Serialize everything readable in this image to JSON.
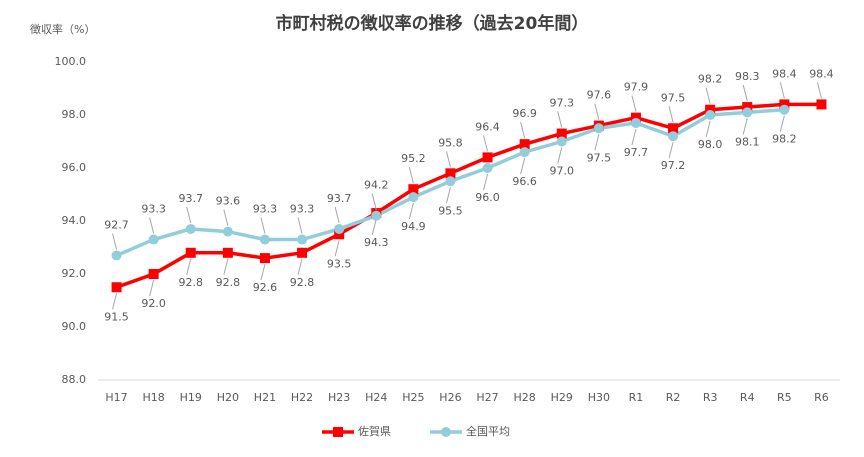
{
  "chart_data": {
    "type": "line",
    "title": "市町村税の徴収率の推移（過去20年間）",
    "y_label": "徴収率（%）",
    "categories": [
      "H17",
      "H18",
      "H19",
      "H20",
      "H21",
      "H22",
      "H23",
      "H24",
      "H25",
      "H26",
      "H27",
      "H28",
      "H29",
      "H30",
      "R1",
      "R2",
      "R3",
      "R4",
      "R5",
      "R6"
    ],
    "series": [
      {
        "name": "佐賀県",
        "color": "#ff0000",
        "marker": "square",
        "values": [
          91.5,
          92.0,
          92.8,
          92.8,
          92.6,
          92.8,
          93.5,
          94.3,
          95.2,
          95.8,
          96.4,
          96.9,
          97.3,
          97.6,
          97.9,
          97.5,
          98.2,
          98.3,
          98.4,
          98.4
        ],
        "value_labels": [
          "91.5",
          "92.0",
          "92.8",
          "92.8",
          "92.6",
          "92.8",
          "93.5",
          "94.3",
          "95.2",
          "95.8",
          "96.4",
          "96.9",
          "97.3",
          "97.6",
          "97.9",
          "97.5",
          "98.2",
          "98.3",
          "98.4",
          "98.4"
        ]
      },
      {
        "name": "全国平均",
        "color": "#92cddc",
        "marker": "circle",
        "values": [
          92.7,
          93.3,
          93.7,
          93.6,
          93.3,
          93.3,
          93.7,
          94.2,
          94.9,
          95.5,
          96.0,
          96.6,
          97.0,
          97.5,
          97.7,
          97.2,
          98.0,
          98.1,
          98.2,
          null
        ],
        "value_labels": [
          "92.7",
          "93.3",
          "93.7",
          "93.6",
          "93.3",
          "93.3",
          "93.7",
          "94.2",
          "94.9",
          "95.5",
          "96.0",
          "96.6",
          "97.0",
          "97.5",
          "97.7",
          "97.2",
          "98.0",
          "98.1",
          "98.2",
          null
        ]
      }
    ],
    "ylim": [
      88,
      100
    ],
    "yticks": [
      {
        "value": 88,
        "label": "88.0"
      },
      {
        "value": 90,
        "label": "90.0"
      },
      {
        "value": 92,
        "label": "92.0"
      },
      {
        "value": 94,
        "label": "94.0"
      },
      {
        "value": 96,
        "label": "96.0"
      },
      {
        "value": 98,
        "label": "98.0"
      },
      {
        "value": 100,
        "label": "100.0"
      }
    ],
    "grid": false,
    "legend": "bottom"
  }
}
